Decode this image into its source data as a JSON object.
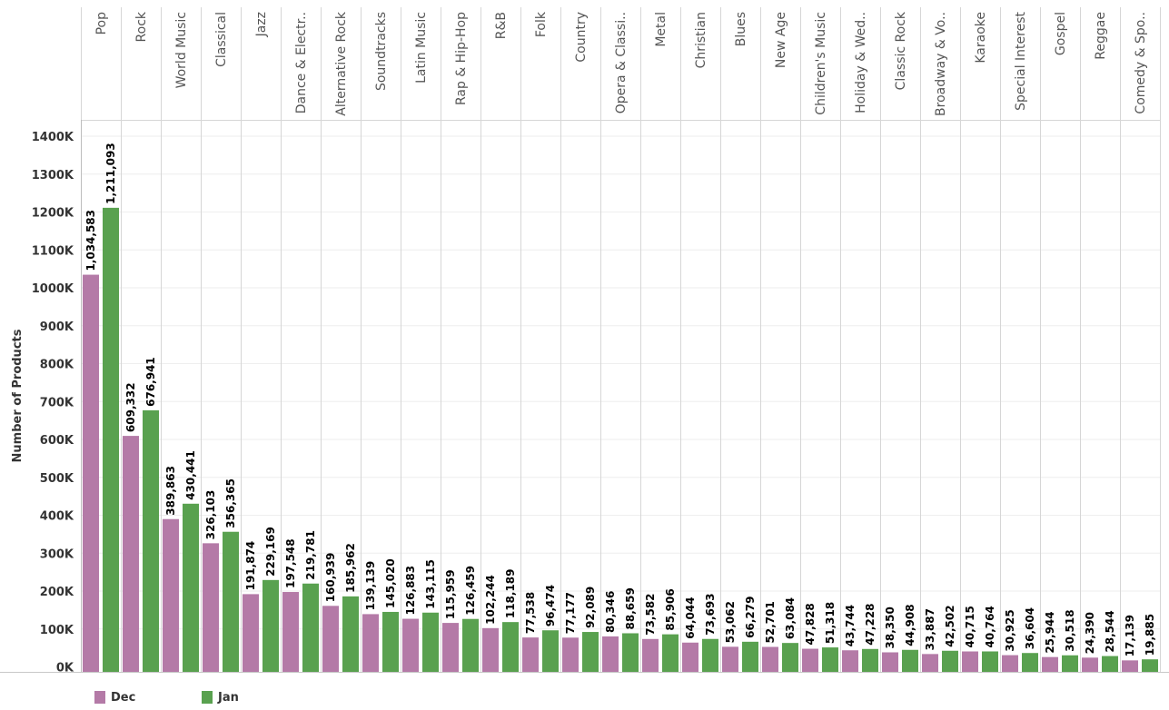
{
  "chart_data": {
    "type": "bar",
    "ylabel": "Number of Products",
    "ylim": [
      0,
      1450000
    ],
    "y_ticks": [
      0,
      100000,
      200000,
      300000,
      400000,
      500000,
      600000,
      700000,
      800000,
      900000,
      1000000,
      1100000,
      1200000,
      1300000,
      1400000
    ],
    "y_tick_labels": [
      "0K",
      "100K",
      "200K",
      "300K",
      "400K",
      "500K",
      "600K",
      "700K",
      "800K",
      "900K",
      "1000K",
      "1100K",
      "1200K",
      "1300K",
      "1400K"
    ],
    "categories": [
      "Pop",
      "Rock",
      "World Music",
      "Classical",
      "Jazz",
      "Dance & Electr..",
      "Alternative Rock",
      "Soundtracks",
      "Latin Music",
      "Rap & Hip-Hop",
      "R&B",
      "Folk",
      "Country",
      "Opera & Classi..",
      "Metal",
      "Christian",
      "Blues",
      "New Age",
      "Children's Music",
      "Holiday & Wed..",
      "Classic Rock",
      "Broadway & Vo..",
      "Karaoke",
      "Special Interest",
      "Gospel",
      "Reggae",
      "Comedy & Spo.."
    ],
    "series": [
      {
        "name": "Dec",
        "color": "#b47aa7",
        "values": [
          1034583,
          609332,
          389863,
          326103,
          191874,
          197548,
          160939,
          139139,
          126883,
          115959,
          102244,
          77538,
          77177,
          80346,
          73582,
          64044,
          53062,
          52701,
          47828,
          43744,
          38350,
          33887,
          40715,
          30925,
          25944,
          24390,
          17139
        ],
        "labels": [
          "1,034,583",
          "609,332",
          "389,863",
          "326,103",
          "191,874",
          "197,548",
          "160,939",
          "139,139",
          "126,883",
          "115,959",
          "102,244",
          "77,538",
          "77,177",
          "80,346",
          "73,582",
          "64,044",
          "53,062",
          "52,701",
          "47,828",
          "43,744",
          "38,350",
          "33,887",
          "40,715",
          "30,925",
          "25,944",
          "24,390",
          "17,139"
        ]
      },
      {
        "name": "Jan",
        "color": "#59a14f",
        "values": [
          1211093,
          676941,
          430441,
          356365,
          229169,
          219781,
          185962,
          145020,
          143115,
          126459,
          118189,
          96474,
          92089,
          88659,
          85906,
          73693,
          66279,
          63084,
          51318,
          47228,
          44908,
          42502,
          40764,
          36604,
          30518,
          28544,
          19885
        ],
        "labels": [
          "1,211,093",
          "676,941",
          "430,441",
          "356,365",
          "229,169",
          "219,781",
          "185,962",
          "145,020",
          "143,115",
          "126,459",
          "118,189",
          "96,474",
          "92,089",
          "88,659",
          "85,906",
          "73,693",
          "66,279",
          "63,084",
          "51,318",
          "47,228",
          "44,908",
          "42,502",
          "40,764",
          "36,604",
          "30,518",
          "28,544",
          "19,885"
        ]
      }
    ],
    "legend_position": "bottom",
    "grid": true
  }
}
